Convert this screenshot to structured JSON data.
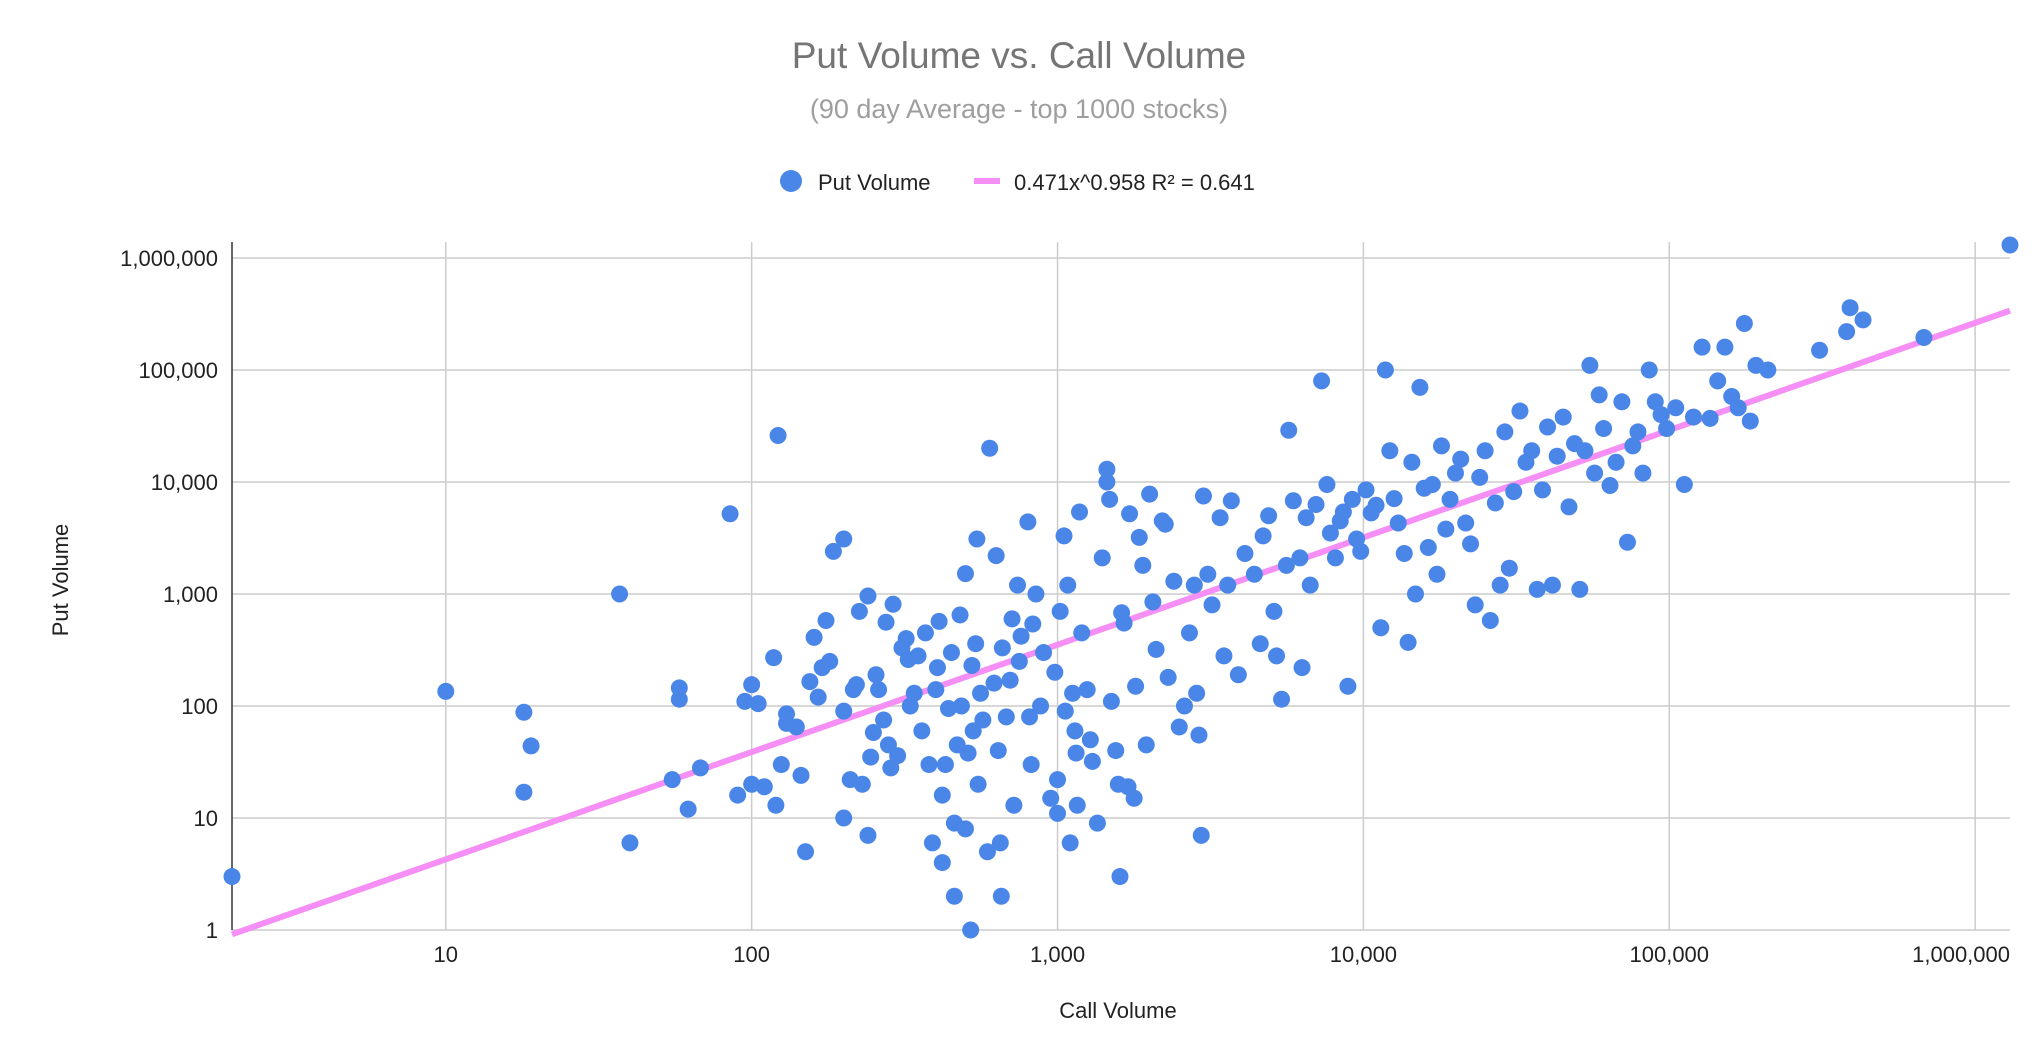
{
  "chart_data": {
    "type": "scatter",
    "title": "Put Volume vs. Call Volume",
    "subtitle": "(90 day Average - top 1000 stocks)",
    "xlabel": "Call Volume",
    "ylabel": "Put Volume",
    "x_scale": "log",
    "y_scale": "log",
    "xlim": [
      2,
      1300000
    ],
    "ylim": [
      1,
      1000000
    ],
    "x_ticks": [
      10,
      100,
      1000,
      10000,
      100000,
      1000000
    ],
    "x_tick_labels": [
      "10",
      "100",
      "1,000",
      "10,000",
      "100,000",
      "1,000,000"
    ],
    "y_ticks": [
      1,
      10,
      100,
      1000,
      10000,
      100000,
      1000000
    ],
    "y_tick_labels": [
      "1",
      "10",
      "100",
      "1,000",
      "10,000",
      "100,000",
      "1,000,000"
    ],
    "grid": true,
    "legend_position": "top",
    "colors": {
      "points": "#4a86e8",
      "trendline": "#f58ff5",
      "title": "#757575",
      "subtitle": "#9e9e9e",
      "grid": "#cccccc"
    },
    "series": [
      {
        "name": "Put Volume",
        "points": [
          [
            2,
            3
          ],
          [
            10,
            135
          ],
          [
            18,
            88
          ],
          [
            18,
            17
          ],
          [
            19,
            44
          ],
          [
            37,
            1000
          ],
          [
            40,
            6
          ],
          [
            55,
            22
          ],
          [
            58,
            115
          ],
          [
            58,
            145
          ],
          [
            62,
            12
          ],
          [
            68,
            28
          ],
          [
            85,
            5200
          ],
          [
            90,
            16
          ],
          [
            95,
            110
          ],
          [
            100,
            155
          ],
          [
            100,
            20
          ],
          [
            105,
            105
          ],
          [
            110,
            19
          ],
          [
            120,
            13
          ],
          [
            118,
            270
          ],
          [
            122,
            26000
          ],
          [
            125,
            30
          ],
          [
            130,
            85
          ],
          [
            130,
            70
          ],
          [
            140,
            65
          ],
          [
            145,
            24
          ],
          [
            150,
            5
          ],
          [
            155,
            165
          ],
          [
            160,
            410
          ],
          [
            165,
            120
          ],
          [
            170,
            220
          ],
          [
            175,
            580
          ],
          [
            180,
            250
          ],
          [
            185,
            2400
          ],
          [
            200,
            3100
          ],
          [
            200,
            10
          ],
          [
            200,
            90
          ],
          [
            210,
            22
          ],
          [
            215,
            140
          ],
          [
            220,
            155
          ],
          [
            225,
            700
          ],
          [
            230,
            20
          ],
          [
            240,
            960
          ],
          [
            240,
            7
          ],
          [
            245,
            35
          ],
          [
            250,
            58
          ],
          [
            255,
            190
          ],
          [
            260,
            140
          ],
          [
            270,
            75
          ],
          [
            275,
            560
          ],
          [
            280,
            45
          ],
          [
            285,
            28
          ],
          [
            290,
            810
          ],
          [
            300,
            36
          ],
          [
            310,
            330
          ],
          [
            320,
            400
          ],
          [
            325,
            260
          ],
          [
            330,
            100
          ],
          [
            340,
            130
          ],
          [
            350,
            280
          ],
          [
            360,
            60
          ],
          [
            370,
            450
          ],
          [
            380,
            30
          ],
          [
            390,
            6
          ],
          [
            400,
            140
          ],
          [
            405,
            220
          ],
          [
            410,
            570
          ],
          [
            420,
            16
          ],
          [
            420,
            4
          ],
          [
            430,
            30
          ],
          [
            440,
            95
          ],
          [
            450,
            300
          ],
          [
            460,
            2
          ],
          [
            460,
            9
          ],
          [
            470,
            45
          ],
          [
            480,
            650
          ],
          [
            485,
            100
          ],
          [
            500,
            8
          ],
          [
            500,
            1520
          ],
          [
            510,
            38
          ],
          [
            520,
            1
          ],
          [
            525,
            230
          ],
          [
            530,
            60
          ],
          [
            540,
            360
          ],
          [
            545,
            3100
          ],
          [
            550,
            20
          ],
          [
            560,
            130
          ],
          [
            570,
            75
          ],
          [
            590,
            5
          ],
          [
            600,
            20000
          ],
          [
            620,
            160
          ],
          [
            630,
            2200
          ],
          [
            640,
            40
          ],
          [
            650,
            6
          ],
          [
            655,
            2
          ],
          [
            660,
            330
          ],
          [
            680,
            80
          ],
          [
            700,
            170
          ],
          [
            710,
            600
          ],
          [
            720,
            13
          ],
          [
            740,
            1200
          ],
          [
            750,
            250
          ],
          [
            760,
            420
          ],
          [
            800,
            4400
          ],
          [
            810,
            80
          ],
          [
            820,
            30
          ],
          [
            830,
            540
          ],
          [
            850,
            1000
          ],
          [
            880,
            100
          ],
          [
            900,
            300
          ],
          [
            950,
            15
          ],
          [
            980,
            200
          ],
          [
            1000,
            22
          ],
          [
            1000,
            11
          ],
          [
            1020,
            700
          ],
          [
            1050,
            3300
          ],
          [
            1060,
            90
          ],
          [
            1080,
            1200
          ],
          [
            1100,
            6
          ],
          [
            1120,
            130
          ],
          [
            1140,
            60
          ],
          [
            1150,
            38
          ],
          [
            1160,
            13
          ],
          [
            1180,
            5400
          ],
          [
            1200,
            450
          ],
          [
            1250,
            140
          ],
          [
            1280,
            50
          ],
          [
            1300,
            32
          ],
          [
            1350,
            9
          ],
          [
            1400,
            2100
          ],
          [
            1450,
            13000
          ],
          [
            1450,
            10000
          ],
          [
            1480,
            7000
          ],
          [
            1500,
            110
          ],
          [
            1550,
            40
          ],
          [
            1580,
            20
          ],
          [
            1600,
            3
          ],
          [
            1620,
            680
          ],
          [
            1650,
            550
          ],
          [
            1700,
            19
          ],
          [
            1720,
            5200
          ],
          [
            1780,
            15
          ],
          [
            1800,
            150
          ],
          [
            1850,
            3200
          ],
          [
            1900,
            1800
          ],
          [
            1950,
            45
          ],
          [
            2000,
            7800
          ],
          [
            2050,
            850
          ],
          [
            2100,
            320
          ],
          [
            2200,
            4500
          ],
          [
            2250,
            4200
          ],
          [
            2300,
            180
          ],
          [
            2400,
            1300
          ],
          [
            2500,
            65
          ],
          [
            2600,
            100
          ],
          [
            2700,
            450
          ],
          [
            2800,
            1200
          ],
          [
            2850,
            130
          ],
          [
            2900,
            55
          ],
          [
            2950,
            7
          ],
          [
            3000,
            7500
          ],
          [
            3100,
            1500
          ],
          [
            3200,
            800
          ],
          [
            3400,
            4800
          ],
          [
            3500,
            280
          ],
          [
            3600,
            1200
          ],
          [
            3700,
            6800
          ],
          [
            3900,
            190
          ],
          [
            4100,
            2300
          ],
          [
            4400,
            1500
          ],
          [
            4600,
            360
          ],
          [
            4700,
            3300
          ],
          [
            4900,
            5000
          ],
          [
            5100,
            700
          ],
          [
            5200,
            280
          ],
          [
            5400,
            115
          ],
          [
            5600,
            1800
          ],
          [
            5700,
            29000
          ],
          [
            5900,
            6800
          ],
          [
            6200,
            2100
          ],
          [
            6300,
            220
          ],
          [
            6500,
            4800
          ],
          [
            6700,
            1200
          ],
          [
            7000,
            6300
          ],
          [
            7300,
            80000
          ],
          [
            7600,
            9500
          ],
          [
            7800,
            3500
          ],
          [
            8100,
            2100
          ],
          [
            8400,
            4500
          ],
          [
            8600,
            5400
          ],
          [
            8900,
            150
          ],
          [
            9200,
            7000
          ],
          [
            9500,
            3100
          ],
          [
            9800,
            2400
          ],
          [
            10200,
            8500
          ],
          [
            10600,
            5300
          ],
          [
            11000,
            6200
          ],
          [
            11400,
            500
          ],
          [
            11800,
            100000
          ],
          [
            12200,
            19000
          ],
          [
            12600,
            7100
          ],
          [
            13000,
            4300
          ],
          [
            13600,
            2300
          ],
          [
            14000,
            370
          ],
          [
            14400,
            15000
          ],
          [
            14800,
            1000
          ],
          [
            15300,
            70000
          ],
          [
            15800,
            8800
          ],
          [
            16300,
            2600
          ],
          [
            16800,
            9500
          ],
          [
            17400,
            1500
          ],
          [
            18000,
            21000
          ],
          [
            18600,
            3800
          ],
          [
            19200,
            7000
          ],
          [
            20000,
            12000
          ],
          [
            20800,
            16000
          ],
          [
            21600,
            4300
          ],
          [
            22400,
            2800
          ],
          [
            23200,
            800
          ],
          [
            24000,
            11000
          ],
          [
            25000,
            19000
          ],
          [
            26000,
            580
          ],
          [
            27000,
            6500
          ],
          [
            28000,
            1200
          ],
          [
            29000,
            28000
          ],
          [
            30000,
            1700
          ],
          [
            31000,
            8200
          ],
          [
            32500,
            43000
          ],
          [
            34000,
            15000
          ],
          [
            35500,
            19000
          ],
          [
            37000,
            1100
          ],
          [
            38500,
            8500
          ],
          [
            40000,
            31000
          ],
          [
            41500,
            1200
          ],
          [
            43000,
            17000
          ],
          [
            45000,
            38000
          ],
          [
            47000,
            6000
          ],
          [
            49000,
            22000
          ],
          [
            51000,
            1100
          ],
          [
            53000,
            19000
          ],
          [
            55000,
            110000
          ],
          [
            57000,
            12000
          ],
          [
            59000,
            60000
          ],
          [
            61000,
            30000
          ],
          [
            64000,
            9300
          ],
          [
            67000,
            15000
          ],
          [
            70000,
            52000
          ],
          [
            73000,
            2900
          ],
          [
            76000,
            21000
          ],
          [
            79000,
            28000
          ],
          [
            82000,
            12000
          ],
          [
            86000,
            100000
          ],
          [
            90000,
            52000
          ],
          [
            94000,
            40000
          ],
          [
            98000,
            30000
          ],
          [
            105000,
            46000
          ],
          [
            112000,
            9500
          ],
          [
            120000,
            38000
          ],
          [
            128000,
            160000
          ],
          [
            136000,
            37000
          ],
          [
            144000,
            80000
          ],
          [
            152000,
            160000
          ],
          [
            160000,
            58000
          ],
          [
            168000,
            46000
          ],
          [
            176000,
            260000
          ],
          [
            184000,
            35000
          ],
          [
            192000,
            110000
          ],
          [
            210000,
            100000
          ],
          [
            310000,
            150000
          ],
          [
            380000,
            220000
          ],
          [
            390000,
            360000
          ],
          [
            430000,
            280000
          ],
          [
            680000,
            195000
          ],
          [
            1300000,
            1350000
          ]
        ]
      },
      {
        "name": "0.471x^0.958 R² = 0.641",
        "kind": "trendline",
        "coef": 0.471,
        "exponent": 0.958,
        "r2": 0.641
      }
    ]
  }
}
